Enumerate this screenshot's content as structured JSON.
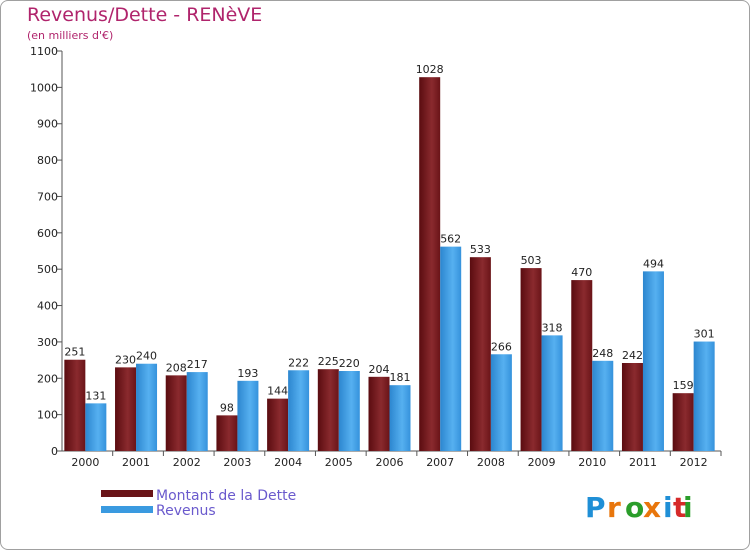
{
  "header": {
    "title": "Revenus/Dette - RENèVE",
    "subtitle": "(en milliers d'€)"
  },
  "logo": {
    "text": "Proxiti"
  },
  "chart_data": {
    "type": "bar",
    "categories": [
      "2000",
      "2001",
      "2002",
      "2003",
      "2004",
      "2005",
      "2006",
      "2007",
      "2008",
      "2009",
      "2010",
      "2011",
      "2012"
    ],
    "series": [
      {
        "name": "Montant de la Dette",
        "color": "#7a1a1e",
        "values": [
          251,
          230,
          208,
          98,
          144,
          225,
          204,
          1028,
          533,
          503,
          470,
          242,
          159
        ]
      },
      {
        "name": "Revenus",
        "color": "#3a9ae0",
        "values": [
          131,
          240,
          217,
          193,
          222,
          220,
          181,
          562,
          266,
          318,
          248,
          494,
          301
        ]
      }
    ],
    "ylim": [
      0,
      1100
    ],
    "yticks": [
      0,
      100,
      200,
      300,
      400,
      500,
      600,
      700,
      800,
      900,
      1000,
      1100
    ],
    "grid": false,
    "legend": "bottom-left"
  }
}
